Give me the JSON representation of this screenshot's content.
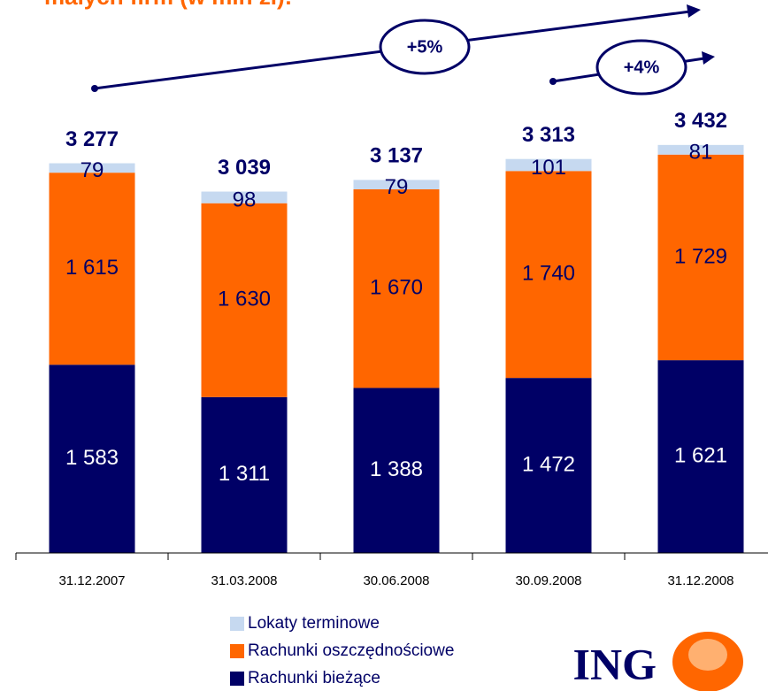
{
  "chart_data": {
    "type": "stacked_bar",
    "title": "małych firm (w mln zł):",
    "categories": [
      "31.12.2007",
      "31.03.2008",
      "30.06.2008",
      "30.09.2008",
      "31.12.2008"
    ],
    "series": [
      {
        "name": "Rachunki bieżące",
        "color": "#000066",
        "values": [
          1583,
          1311,
          1388,
          1472,
          1621
        ],
        "value_labels": [
          "1 583",
          "1 311",
          "1 388",
          "1 472",
          "1 621"
        ]
      },
      {
        "name": "Rachunki oszczędnościowe",
        "color": "#ff6600",
        "values": [
          1615,
          1630,
          1670,
          1740,
          1729
        ],
        "value_labels": [
          "1 615",
          "1 630",
          "1 670",
          "1 740",
          "1 729"
        ]
      },
      {
        "name": "Lokaty terminowe",
        "color": "#c6d9f0",
        "values": [
          79,
          98,
          79,
          101,
          81
        ]
      }
    ],
    "totals": [
      3277,
      3039,
      3137,
      3313,
      3432
    ],
    "totals_labels": [
      "3 277",
      "3 039",
      "3 137",
      "3 313",
      "3 432"
    ],
    "ylim": [
      0,
      4650
    ],
    "annotations": [
      "+5%",
      "+4%"
    ],
    "logo": "ING"
  }
}
